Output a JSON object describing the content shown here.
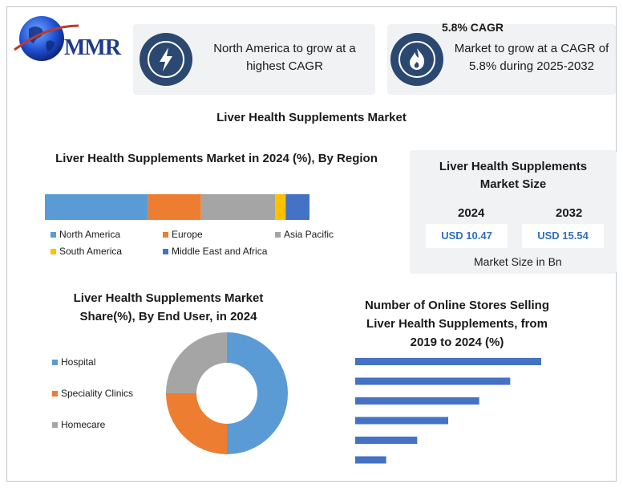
{
  "brand": {
    "logo_text": "MMR"
  },
  "cards": {
    "region": {
      "text_line1": "North America to grow at a",
      "text_line2": "highest CAGR"
    },
    "cagr": {
      "heading": "5.8% CAGR",
      "text_line1": "Market to grow at a CAGR of",
      "text_line2": "5.8% during 2025-2032"
    }
  },
  "main_title": "Liver Health Supplements Market",
  "market_size": {
    "title_line1": "Liver Health Supplements",
    "title_line2": "Market Size",
    "years": [
      {
        "year": "2024",
        "value": "USD 10.47"
      },
      {
        "year": "2032",
        "value": "USD 15.54"
      }
    ],
    "note": "Market Size in Bn"
  },
  "chart_data": [
    {
      "type": "bar",
      "orientation": "horizontal-stacked",
      "title": "Liver Health Supplements Market in 2024 (%), By Region",
      "categories": [
        "North America",
        "Europe",
        "Asia Pacific",
        "South America",
        "Middle East and Africa"
      ],
      "values": [
        39,
        20,
        28,
        4,
        9
      ],
      "colors": [
        "#5b9bd5",
        "#ed7d31",
        "#a5a5a5",
        "#ffc000",
        "#4472c4"
      ],
      "legend": [
        "North America",
        "Europe",
        "Asia Pacific",
        "South America",
        "Middle East and Africa"
      ]
    },
    {
      "type": "pie",
      "subtype": "donut",
      "title": "Liver Health Supplements Market Share(%), By End User, in 2024",
      "categories": [
        "Hospital",
        "Speciality Clinics",
        "Homecare"
      ],
      "values": [
        50,
        25,
        25
      ],
      "colors": [
        "#5b9bd5",
        "#ed7d31",
        "#a5a5a5"
      ],
      "legend": [
        "Hospital",
        "Speciality Clinics",
        "Homecare"
      ]
    },
    {
      "type": "bar",
      "orientation": "horizontal",
      "title": "Number of Online Stores Selling Liver Health Supplements, from 2019 to 2024 (%)",
      "values": [
        60,
        50,
        40,
        30,
        20,
        10
      ],
      "color": "#4472c4"
    }
  ]
}
